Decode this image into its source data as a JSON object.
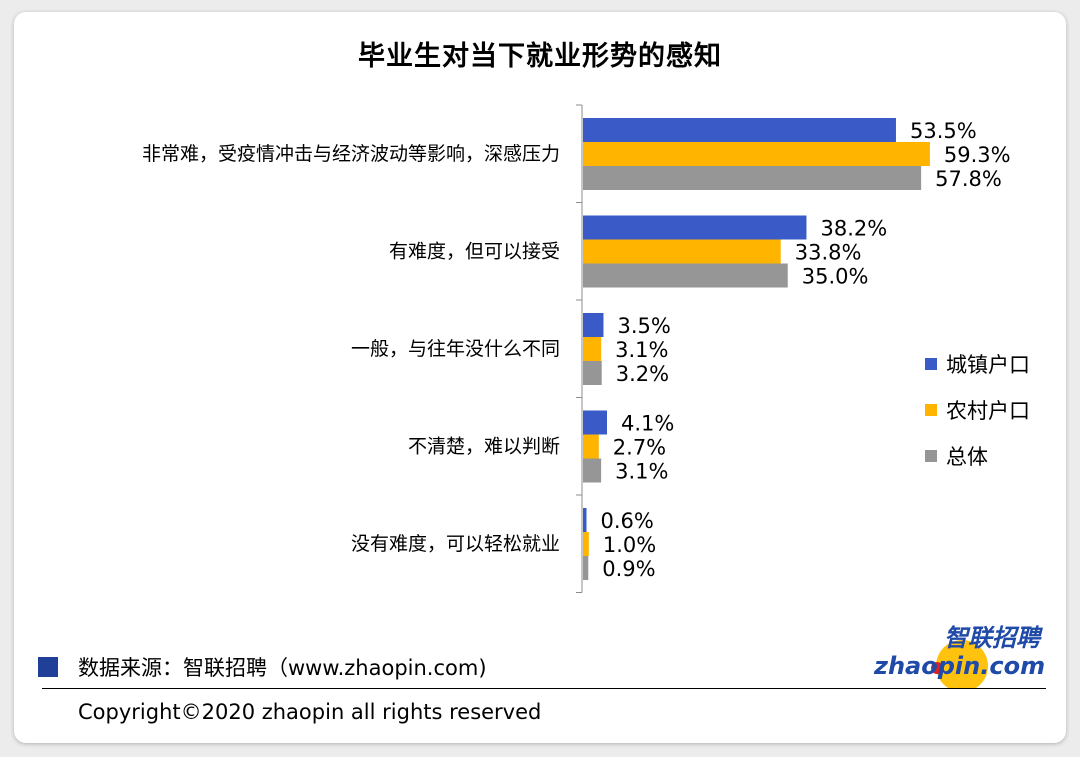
{
  "chart_data": {
    "type": "bar",
    "orientation": "horizontal",
    "title": "毕业生对当下就业形势的感知",
    "categories": [
      "非常难，受疫情冲击与经济波动等影响，深感压力",
      "有难度，但可以接受",
      "一般，与往年没什么不同",
      "不清楚，难以判断",
      "没有难度，可以轻松就业"
    ],
    "series": [
      {
        "name": "城镇户口",
        "color": "#3a5bc7",
        "values": [
          53.5,
          38.2,
          3.5,
          4.1,
          0.6
        ],
        "labels": [
          "53.5%",
          "38.2%",
          "3.5%",
          "4.1%",
          "0.6%"
        ]
      },
      {
        "name": "农村户口",
        "color": "#ffb400",
        "values": [
          59.3,
          33.8,
          3.1,
          2.7,
          1.0
        ],
        "labels": [
          "59.3%",
          "33.8%",
          "3.1%",
          "2.7%",
          "1.0%"
        ]
      },
      {
        "name": "总体",
        "color": "#969696",
        "values": [
          57.8,
          35.0,
          3.2,
          3.1,
          0.9
        ],
        "labels": [
          "57.8%",
          "35.0%",
          "3.2%",
          "3.1%",
          "0.9%"
        ]
      }
    ],
    "legend_position": "right",
    "grid": false,
    "value_unit": "%"
  },
  "footer": {
    "source": "数据来源：智联招聘（www.zhaopin.com)",
    "copyright": "Copyright©2020 zhaopin all rights reserved",
    "source_swatch_color": "#1f3f99"
  },
  "logo": {
    "text_cn": "智联招聘",
    "text_en": "zhaopin.com",
    "color_blue": "#1f4aa8",
    "color_yellow": "#ffc20e",
    "color_red": "#e02020"
  }
}
